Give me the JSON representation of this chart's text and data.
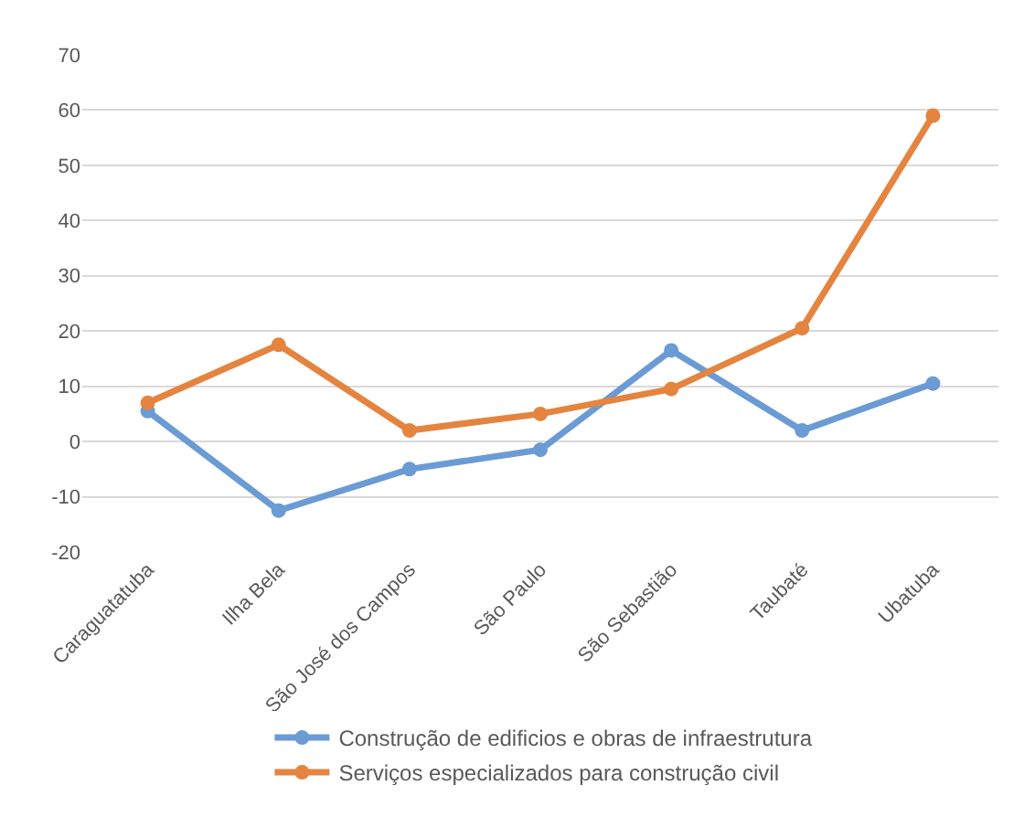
{
  "chart_data": {
    "type": "line",
    "categories": [
      "Caraguatatuba",
      "Ilha Bela",
      "São José dos Campos",
      "São Paulo",
      "São Sebastião",
      "Taubaté",
      "Ubatuba"
    ],
    "series": [
      {
        "name": "Construção de edificios e obras de infraestrutura",
        "color": "#6a9bd4",
        "values": [
          5.5,
          -12.5,
          -5,
          -1.5,
          16.5,
          2,
          10.5
        ]
      },
      {
        "name": "Serviços especializados para construção civil",
        "color": "#e5843f",
        "values": [
          7,
          17.5,
          2,
          5,
          9.5,
          20.5,
          59
        ]
      }
    ],
    "ylim": [
      -20,
      70
    ],
    "yticks": [
      -20,
      -10,
      0,
      10,
      20,
      30,
      40,
      50,
      60,
      70
    ],
    "grid": "y",
    "legend": "bottom",
    "marker": "circle",
    "line_style": "solid"
  }
}
